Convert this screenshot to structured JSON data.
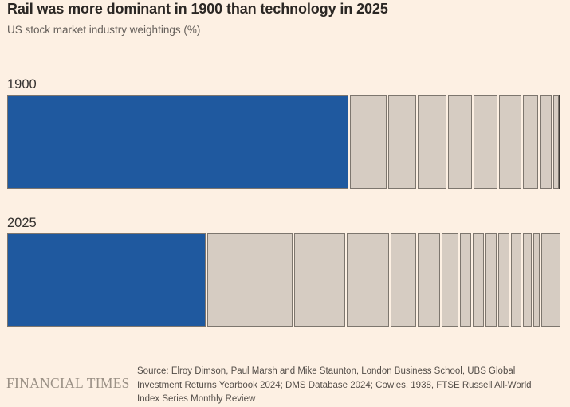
{
  "header": {
    "title": "Rail was more dominant in 1900 than technology in 2025",
    "subtitle": "US stock market industry weightings (%)"
  },
  "chart_data": {
    "type": "bar",
    "variant": "horizontal-stacked",
    "unit": "%",
    "xlim": [
      0,
      100
    ],
    "axis_ticks_visible": false,
    "segment_labels_visible": false,
    "highlight_color": "#1f599f",
    "other_color": "#d6ccc2",
    "segment_border_color": "#7d766e",
    "background_color": "#fdf0e3",
    "note": "Segments are unlabelled in the chart; per the title, the blue (first) segment is rail in 1900 and technology in 2025. Values estimated from bar widths.",
    "bars": [
      {
        "label": "1900",
        "highlight_label": "Rail",
        "highlight_index": 0,
        "values": [
          62.4,
          6.5,
          4.9,
          4.9,
          4.2,
          4.0,
          3.9,
          2.4,
          2.0,
          0.7
        ]
      },
      {
        "label": "2025",
        "highlight_label": "Technology",
        "highlight_index": 0,
        "values": [
          37.0,
          15.7,
          9.2,
          7.6,
          4.5,
          3.9,
          2.9,
          1.8,
          1.8,
          1.8,
          1.7,
          1.7,
          1.3,
          0.9,
          3.3
        ]
      }
    ]
  },
  "footer": {
    "brand": "FINANCIAL TIMES",
    "source_lines": [
      "Source: Elroy Dimson, Paul Marsh and Mike Staunton, London Business School, UBS Global",
      "Investment Returns Yearbook 2024; DMS Database 2024; Cowles, 1938, FTSE Russell All-World",
      "Index Series Monthly Review"
    ]
  }
}
